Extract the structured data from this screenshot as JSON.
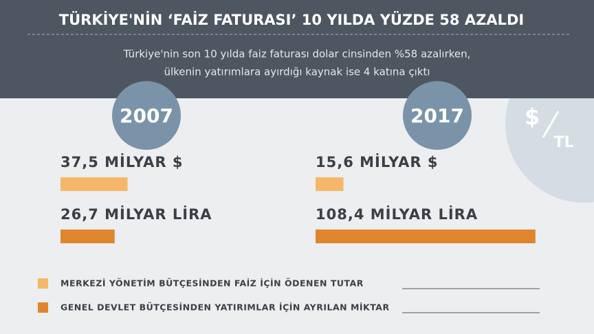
{
  "header": {
    "title": "TÜRKİYE'NİN ‘FAİZ FATURASI’ 10 YILDA YÜZDE 58 AZALDI",
    "subtitle": [
      "Türkiye'nin son 10 yılda faiz faturası dolar cinsinden %58 azalırken,",
      "ülkenin yatırımlara ayırdığı kaynak ise 4 katına çıktı"
    ]
  },
  "icon": [
    "$",
    "TL"
  ],
  "panels": [
    {
      "year": "2007",
      "items": [
        {
          "value": 37.5,
          "value_label": "37,5 MİLYAR $"
        },
        {
          "value": 26.7,
          "value_label": "26,7 MİLYAR LİRA"
        }
      ]
    },
    {
      "year": "2017",
      "items": [
        {
          "value": 15.6,
          "value_label": "15,6 MİLYAR $"
        },
        {
          "value": 108.4,
          "value_label": "108,4 MİLYAR LİRA"
        }
      ]
    }
  ],
  "legend": [
    {
      "label": "MERKEZİ YÖNETİM BÜTÇESİNDEN FAİZ İÇİN ÖDENEN TUTAR",
      "color": "#f5b86a"
    },
    {
      "label": "GENEL DEVLET BÜTÇESİNDEN YATIRIMLAR İÇİN AYRILAN MİKTAR",
      "color": "#e0852b"
    }
  ]
}
